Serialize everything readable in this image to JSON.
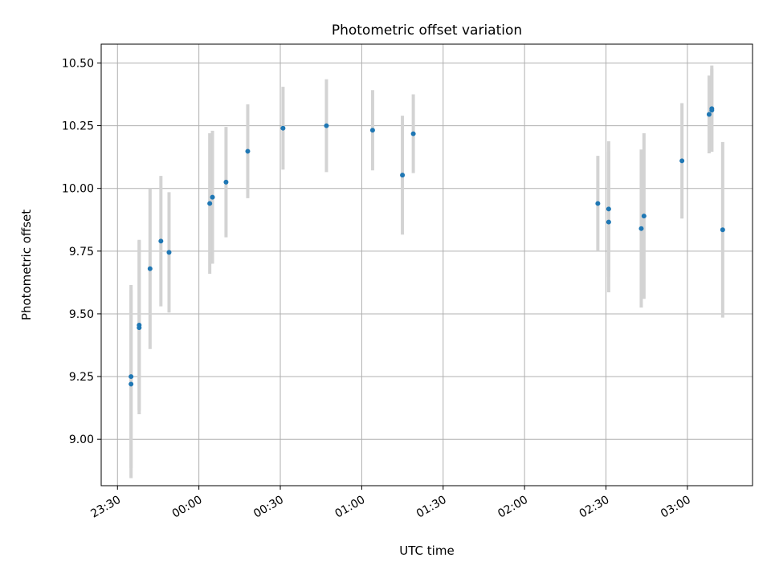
{
  "chart_data": {
    "type": "scatter",
    "title": "Photometric offset variation",
    "xlabel": "UTC time",
    "ylabel": "Photometric offset",
    "x_axis": "time",
    "xlim": [
      "23:24",
      "03:24"
    ],
    "ylim": [
      8.815,
      10.575
    ],
    "x_ticks": [
      "23:30",
      "00:00",
      "00:30",
      "01:00",
      "01:30",
      "02:00",
      "02:30",
      "03:00"
    ],
    "y_ticks": [
      9.0,
      9.25,
      9.5,
      9.75,
      10.0,
      10.25,
      10.5
    ],
    "y_tick_labels": [
      "9.00",
      "9.25",
      "9.50",
      "9.75",
      "10.00",
      "10.25",
      "10.50"
    ],
    "grid": true,
    "legend": "none",
    "colors": {
      "points": "#1f77b4",
      "error_bars": "#d3d3d3",
      "grid": "#b0b0b0"
    },
    "series": [
      {
        "points": [
          {
            "x": "23:35",
            "y": 9.25,
            "yerr": 0.365
          },
          {
            "x": "23:35",
            "y": 9.22,
            "yerr": 0.375
          },
          {
            "x": "23:38",
            "y": 9.455,
            "yerr": 0.34
          },
          {
            "x": "23:38",
            "y": 9.445,
            "yerr": 0.345
          },
          {
            "x": "23:42",
            "y": 9.68,
            "yerr": 0.32
          },
          {
            "x": "23:46",
            "y": 9.79,
            "yerr": 0.26
          },
          {
            "x": "23:49",
            "y": 9.745,
            "yerr": 0.24
          },
          {
            "x": "00:05",
            "y": 9.965,
            "yerr": 0.265
          },
          {
            "x": "00:04",
            "y": 9.94,
            "yerr": 0.28
          },
          {
            "x": "00:10",
            "y": 10.025,
            "yerr": 0.22
          },
          {
            "x": "00:18",
            "y": 10.148,
            "yerr": 0.187
          },
          {
            "x": "00:31",
            "y": 10.24,
            "yerr": 0.165
          },
          {
            "x": "00:47",
            "y": 10.25,
            "yerr": 0.185
          },
          {
            "x": "01:04",
            "y": 10.232,
            "yerr": 0.16
          },
          {
            "x": "01:15",
            "y": 10.053,
            "yerr": 0.237
          },
          {
            "x": "01:19",
            "y": 10.218,
            "yerr": 0.157
          },
          {
            "x": "02:27",
            "y": 9.94,
            "yerr": 0.19
          },
          {
            "x": "02:31",
            "y": 9.918,
            "yerr": 0.27
          },
          {
            "x": "02:31",
            "y": 9.866,
            "yerr": 0.28
          },
          {
            "x": "02:44",
            "y": 9.89,
            "yerr": 0.33
          },
          {
            "x": "02:43",
            "y": 9.84,
            "yerr": 0.315
          },
          {
            "x": "02:58",
            "y": 10.11,
            "yerr": 0.23
          },
          {
            "x": "03:08",
            "y": 10.295,
            "yerr": 0.155
          },
          {
            "x": "03:09",
            "y": 10.318,
            "yerr": 0.172
          },
          {
            "x": "03:09",
            "y": 10.312,
            "yerr": 0.165
          },
          {
            "x": "03:13",
            "y": 9.835,
            "yerr": 0.35
          }
        ]
      }
    ]
  }
}
